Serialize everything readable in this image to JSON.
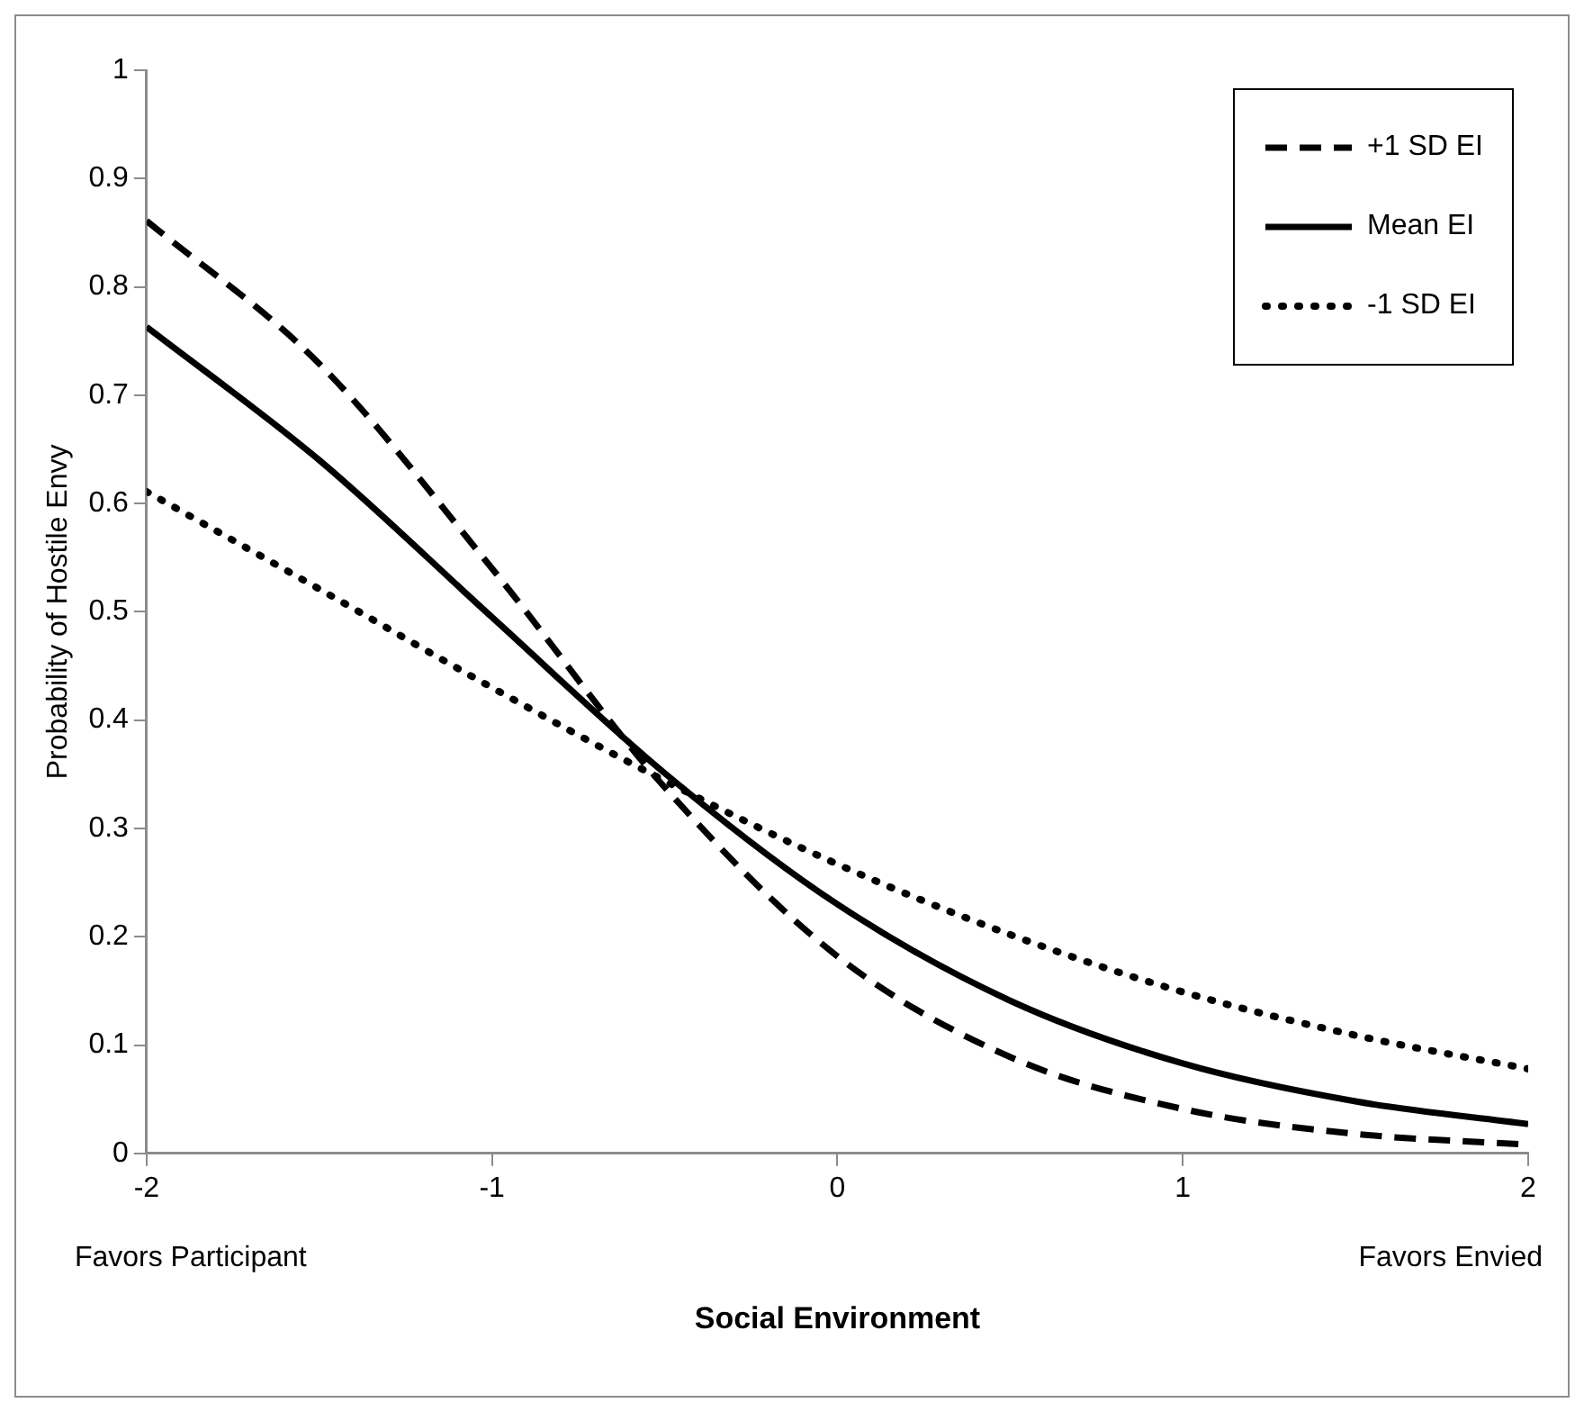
{
  "chart_data": {
    "type": "line",
    "xlabel": "Social Environment",
    "ylabel": "Probability of Hostile Envy",
    "x": [
      -2,
      -1.5,
      -1,
      -0.5,
      0,
      0.5,
      1,
      1.5,
      2
    ],
    "series": [
      {
        "name": "+1 SD EI",
        "color": "#000000",
        "line_style": "dashed",
        "values": [
          0.861,
          0.729,
          0.54,
          0.338,
          0.182,
          0.089,
          0.041,
          0.018,
          0.008
        ]
      },
      {
        "name": "Mean EI",
        "color": "#000000",
        "line_style": "solid",
        "values": [
          0.763,
          0.64,
          0.495,
          0.351,
          0.23,
          0.141,
          0.083,
          0.048,
          0.027
        ]
      },
      {
        "name": "-1 SD EI",
        "color": "#000000",
        "line_style": "dotted",
        "values": [
          0.611,
          0.521,
          0.43,
          0.344,
          0.267,
          0.202,
          0.149,
          0.109,
          0.078
        ]
      }
    ],
    "xlim": [
      -2,
      2
    ],
    "xticks": [
      -2,
      -1,
      0,
      1,
      2
    ],
    "ylim": [
      0,
      1
    ],
    "yticks": [
      0,
      {
        "value": 0.1,
        "label": "0.1"
      },
      {
        "value": 0.2,
        "label": "0.2"
      },
      {
        "value": 0.3,
        "label": "0.3"
      },
      {
        "value": 0.4,
        "label": "0.4"
      },
      {
        "value": 0.5,
        "label": "0.5"
      },
      {
        "value": 0.6,
        "label": "0.6"
      },
      {
        "value": 0.7,
        "label": "0.7"
      },
      {
        "value": 0.8,
        "label": "0.8"
      },
      {
        "value": 0.9,
        "label": "0.9"
      },
      1
    ],
    "annotations": [
      "Favors Participant",
      "Favors Envied"
    ],
    "grid": false,
    "legend": "top right",
    "marker": "none"
  }
}
